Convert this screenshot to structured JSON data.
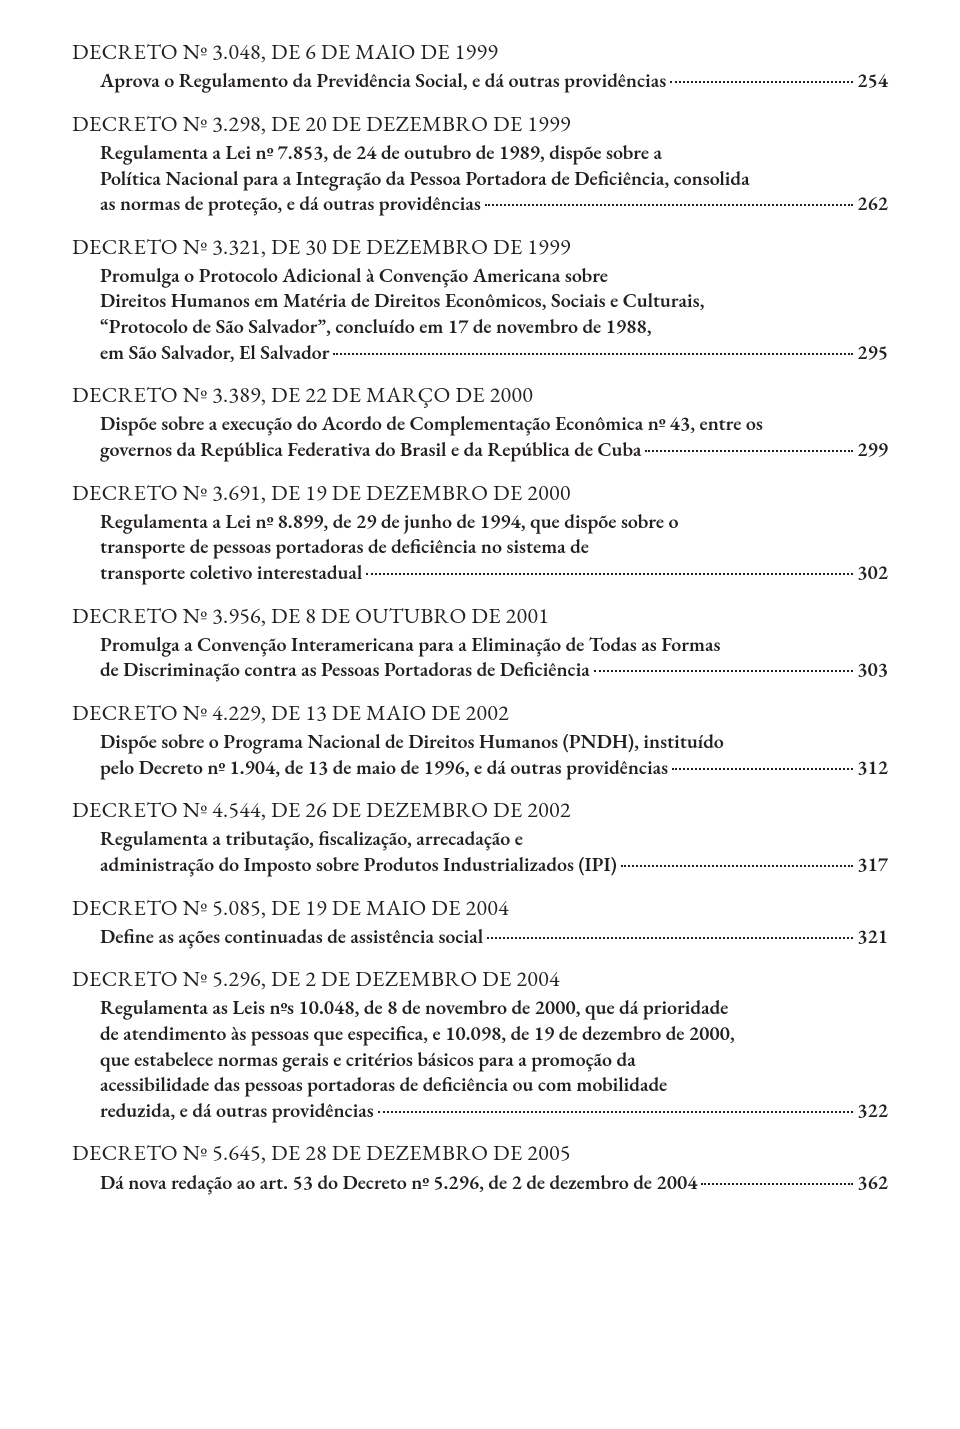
{
  "entries": [
    {
      "title": "DECRETO Nº 3.048, DE 6 DE MAIO DE 1999",
      "lines": [
        {
          "text": "Aprova o Regulamento da Previdência Social, e dá outras providências",
          "page": "254"
        }
      ]
    },
    {
      "title": "DECRETO Nº 3.298, DE 20 DE DEZEMBRO DE 1999",
      "lines": [
        {
          "text": "Regulamenta a Lei nº 7.853, de 24 de outubro de 1989, dispõe sobre a"
        },
        {
          "text": "Política Nacional para a Integração da Pessoa Portadora de Deficiência, consolida"
        },
        {
          "text": "as normas de proteção, e dá outras providências",
          "page": "262"
        }
      ]
    },
    {
      "title": "DECRETO Nº 3.321, DE 30 DE DEZEMBRO DE 1999",
      "lines": [
        {
          "text": "Promulga o Protocolo Adicional à Convenção Americana sobre"
        },
        {
          "text": "Direitos Humanos em Matéria de Direitos Econômicos, Sociais e Culturais,"
        },
        {
          "text": "“Protocolo de São Salvador”, concluído em 17 de novembro de 1988,"
        },
        {
          "text": "em São Salvador, El Salvador",
          "page": "295"
        }
      ]
    },
    {
      "title": "DECRETO Nº 3.389, DE 22 DE MARÇO DE 2000",
      "lines": [
        {
          "text": "Dispõe sobre a execução do Acordo de Complementação Econômica nº 43, entre os"
        },
        {
          "text": "governos da República Federativa do Brasil e da República de Cuba",
          "page": "299"
        }
      ]
    },
    {
      "title": "DECRETO Nº 3.691, DE 19 DE DEZEMBRO DE 2000",
      "lines": [
        {
          "text": "Regulamenta a Lei nº 8.899, de 29 de junho de 1994, que dispõe sobre o"
        },
        {
          "text": "transporte de pessoas portadoras de deficiência no sistema de"
        },
        {
          "text": "transporte coletivo interestadual",
          "page": "302"
        }
      ]
    },
    {
      "title": "DECRETO Nº 3.956, DE 8 DE OUTUBRO DE 2001",
      "lines": [
        {
          "text": "Promulga a Convenção Interamericana para a Eliminação de Todas as Formas"
        },
        {
          "text": "de Discriminação contra as Pessoas Portadoras de Deficiência",
          "page": "303"
        }
      ]
    },
    {
      "title": "DECRETO Nº 4.229, DE 13 DE MAIO DE 2002",
      "lines": [
        {
          "text": "Dispõe sobre o Programa Nacional de Direitos Humanos (PNDH), instituído"
        },
        {
          "text": "pelo Decreto nº 1.904, de 13 de maio de 1996, e dá outras providências",
          "page": "312"
        }
      ]
    },
    {
      "title": "DECRETO Nº 4.544, DE 26 DE DEZEMBRO DE 2002",
      "lines": [
        {
          "text": "Regulamenta a tributação, fiscalização, arrecadação e"
        },
        {
          "text": "administração do Imposto sobre Produtos Industrializados (IPI)",
          "page": "317"
        }
      ]
    },
    {
      "title": "DECRETO Nº 5.085, DE 19 DE MAIO DE 2004",
      "lines": [
        {
          "text": "Define as ações continuadas de assistência social",
          "page": "321"
        }
      ]
    },
    {
      "title": "DECRETO Nº 5.296, DE 2 DE DEZEMBRO DE 2004",
      "lines": [
        {
          "text": "Regulamenta as Leis nºs 10.048, de 8 de novembro de 2000, que dá prioridade"
        },
        {
          "text": "de atendimento às pessoas que especifica, e 10.098, de 19 de dezembro de 2000,"
        },
        {
          "text": "que estabelece normas gerais e critérios básicos para a promoção da"
        },
        {
          "text": "acessibilidade das pessoas portadoras de deficiência ou com mobilidade"
        },
        {
          "text": "reduzida, e dá outras providências",
          "page": "322"
        }
      ]
    },
    {
      "title": "DECRETO Nº 5.645, DE 28 DE DEZEMBRO DE 2005",
      "lines": [
        {
          "text": "Dá nova redação ao art. 53 do Decreto nº 5.296, de 2 de dezembro de 2004",
          "page": "362"
        }
      ]
    }
  ]
}
